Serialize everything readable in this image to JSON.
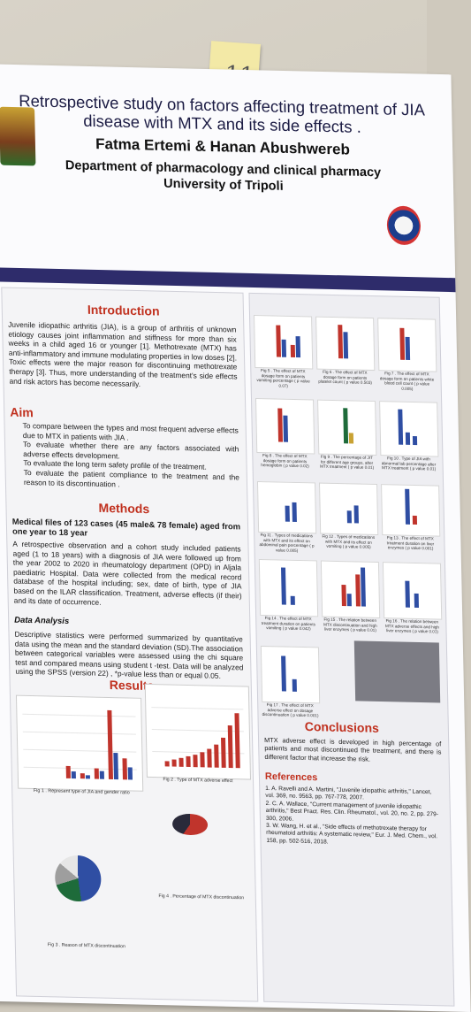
{
  "sticky_note": {
    "text": "11"
  },
  "poster": {
    "title": "Retrospective study on factors affecting treatment of JIA disease with MTX and its side effects .",
    "authors": "Fatma Ertemi & Hanan Abushwereb",
    "department": "Department of pharmacology and clinical pharmacy",
    "university": "University of Tripoli",
    "introduction": {
      "heading": "Introduction",
      "text": "Juvenile idiopathic arthritis (JIA), is a group of arthritis of unknown etiology causes joint inflammation and stiffness for more than six weeks in a child aged 16 or younger [1]. Methotrexate (MTX) has anti-inflammatory and immune modulating properties in low doses [2]. Toxic effects were the major reason for discontinuing methotrexate therapy [3]. Thus, more understanding of the treatment's side effects and risk actors has become necessarily."
    },
    "aim": {
      "heading": "Aim",
      "items": [
        "To compare between the types and most frequent adverse effects due to MTX in patients with JIA .",
        "To evaluate whether there are any factors associated with adverse effects development.",
        "To evaluate the long term safety profile of the treatment.",
        "To evaluate the patient compliance to the treatment and the reason to its discontinuation ."
      ]
    },
    "methods": {
      "heading": "Methods",
      "lead": "Medical files of 123 cases (45 male& 78 female) aged from one year to 18 year",
      "text": "A retrospective observation and a cohort study included patients aged (1 to 18 years) with a diagnosis of JIA were followed up from the year 2002 to 2020 in rheumatology department (OPD) in Aljala paediatric Hospital. Data were collected from the medical record database of the hospital including; sex, date of birth, type of JIA based on the ILAR classification. Treatment, adverse effects (if their) and its date of occurrence.",
      "analysis_heading": "Data Analysis",
      "analysis_text": "Descriptive statistics were performed summarized by quantitative data using the mean and the standard deviation (SD).The association between categorical variables were assessed using the chi square test and compared means using student t -test. Data will be analyzed using the SPSS (version 22) , *p-value less than or equal 0.05."
    },
    "results": {
      "heading": "Results",
      "fig1_caption": "Fig 1 . Represent type of JIA and gender ratio",
      "fig2_caption": "Fig 2 . Type of MTX adverse effect",
      "fig3_caption": "Fig 3 . Reason of MTX discontinuation",
      "fig4_caption": "Fig 4 . Percentage of MTX discontinuation"
    },
    "right_figures": [
      "Fig 5 . The effect of MTX dosage form on patients vomiting percentage ( p value 0.07)",
      "Fig 6 . The effect of MTX dosage form on patients platelet count ( p value 0.503)",
      "Fig 7 . The effect of MTX dosage form on patients white blood cell count ( p value 0.005)",
      "Fig 8 . The effect of MTX dosage form on patients hemoglobin ( p value 0.02)",
      "Fig 9 . The percentage of JIT for different age groups, after MTX treatment ( p value 0.01)",
      "Fig 10 . Type of JIA with abnormal lab percentage after MTX treatment ( p value 0.01)",
      "Fig 11 . Types of medications with MTX and its effect on abdominal pain percentage ( p value 0.005)",
      "Fig 12 . Types of medications with MTX and its effect on vomiting ( p value 0.005)",
      "Fig 13 . The effect of MTX treatment duration on liver enzymes ( p value 0.001)",
      "Fig 14 . The effect of MTX treatment duration on patients vomiting ( p value 0.042)",
      "Fig 15 . The relation between MTX discontinuation and high liver enzymes ( p value 0.01)",
      "Fig 16 . The relation between MTX adverse effects and high liver enzymes ( p value 0.01)",
      "Fig 17 . The effect of MTX adverse effect on dosage discontinuation ( p value 0.001)"
    ],
    "conclusions": {
      "heading": "Conclusions",
      "text": "MTX adverse effect is developed in high percentage of patients and most discontinued the treatment, and there is different factor that increase the risk."
    },
    "references": {
      "heading": "References",
      "items": [
        "1. A. Ravelli and A. Martini, \"Juvenile idiopathic arthritis,\" Lancet, vol. 369, no. 9563, pp. 767-778, 2007.",
        "2. C. A. Wallace, \"Current management of juvenile idiopathic arthritis,\" Best Pract. Res. Clin. Rheumatol., vol. 20, no. 2, pp. 279-300, 2006.",
        "3. W. Wang, H. et al., \"Side effects of methotrexate therapy for rheumatoid arthritis: A systematic review,\" Eur. J. Med. Chem., vol. 158, pp. 502-516, 2018."
      ]
    },
    "colors": {
      "band": "#2e2c6b",
      "heading": "#c0301e",
      "bar_red": "#c0342c",
      "bar_blue": "#2f4ea3"
    }
  }
}
